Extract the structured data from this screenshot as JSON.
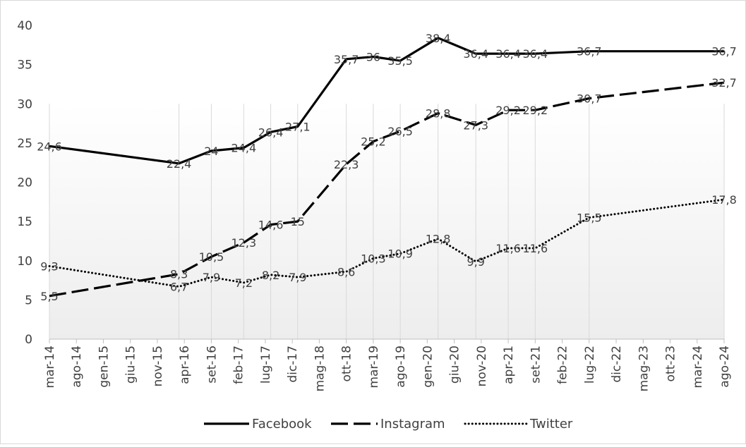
{
  "chart_data": {
    "type": "line",
    "title": "",
    "xlabel": "",
    "ylabel": "",
    "ylim": [
      0,
      40
    ],
    "yticks": [
      0,
      5,
      10,
      15,
      20,
      25,
      30,
      35,
      40
    ],
    "grid": "vertical at data points",
    "legend_position": "bottom",
    "x_axis_labels": [
      "mar-14",
      "ago-14",
      "gen-15",
      "giu-15",
      "nov-15",
      "apr-16",
      "set-16",
      "feb-17",
      "lug-17",
      "dic-17",
      "mag-18",
      "ott-18",
      "mar-19",
      "ago-19",
      "gen-20",
      "giu-20",
      "nov-20",
      "apr-21",
      "set-21",
      "feb-22",
      "lug-22",
      "dic-22",
      "mag-23",
      "ott-23",
      "mar-24",
      "ago-24"
    ],
    "series": [
      {
        "name": "Facebook",
        "dash": "solid",
        "points": [
          {
            "x": "2014-03",
            "y": 24.6,
            "label": "24,6"
          },
          {
            "x": "2016-03",
            "y": 22.4,
            "label": "22,4"
          },
          {
            "x": "2016-09",
            "y": 24,
            "label": "24"
          },
          {
            "x": "2017-03",
            "y": 24.4,
            "label": "24,4"
          },
          {
            "x": "2017-08",
            "y": 26.4,
            "label": "26,4"
          },
          {
            "x": "2018-01",
            "y": 27.1,
            "label": "27,1"
          },
          {
            "x": "2018-10",
            "y": 35.7,
            "label": "35,7"
          },
          {
            "x": "2019-03",
            "y": 36,
            "label": "36"
          },
          {
            "x": "2019-08",
            "y": 35.5,
            "label": "35,5"
          },
          {
            "x": "2020-03",
            "y": 38.4,
            "label": "38,4"
          },
          {
            "x": "2020-10",
            "y": 36.4,
            "label": "36,4"
          },
          {
            "x": "2021-04",
            "y": 36.4,
            "label": "36,4"
          },
          {
            "x": "2021-09",
            "y": 36.4,
            "label": "36,4"
          },
          {
            "x": "2022-07",
            "y": 36.7,
            "label": "36,7"
          },
          {
            "x": "2024-08",
            "y": 36.7,
            "label": "36,7"
          }
        ]
      },
      {
        "name": "Instagram",
        "dash": "long-dash",
        "points": [
          {
            "x": "2014-03",
            "y": 5.5,
            "label": "5,5"
          },
          {
            "x": "2016-03",
            "y": 8.3,
            "label": "8,3"
          },
          {
            "x": "2016-09",
            "y": 10.5,
            "label": "10,5"
          },
          {
            "x": "2017-03",
            "y": 12.3,
            "label": "12,3"
          },
          {
            "x": "2017-08",
            "y": 14.6,
            "label": "14,6"
          },
          {
            "x": "2018-01",
            "y": 15,
            "label": "15"
          },
          {
            "x": "2018-10",
            "y": 22.3,
            "label": "22,3"
          },
          {
            "x": "2019-03",
            "y": 25.2,
            "label": "25,2"
          },
          {
            "x": "2019-08",
            "y": 26.5,
            "label": "26,5"
          },
          {
            "x": "2020-03",
            "y": 28.8,
            "label": "28,8"
          },
          {
            "x": "2020-10",
            "y": 27.3,
            "label": "27,3"
          },
          {
            "x": "2021-04",
            "y": 29.2,
            "label": "29,2"
          },
          {
            "x": "2021-09",
            "y": 29.2,
            "label": "29,2"
          },
          {
            "x": "2022-07",
            "y": 30.7,
            "label": "30,7"
          },
          {
            "x": "2024-08",
            "y": 32.7,
            "label": "32,7"
          }
        ]
      },
      {
        "name": "Twitter",
        "dash": "dotted",
        "points": [
          {
            "x": "2014-03",
            "y": 9.3,
            "label": "9,3"
          },
          {
            "x": "2016-03",
            "y": 6.7,
            "label": "6,7"
          },
          {
            "x": "2016-09",
            "y": 7.9,
            "label": "7,9"
          },
          {
            "x": "2017-03",
            "y": 7.2,
            "label": "7,2"
          },
          {
            "x": "2017-08",
            "y": 8.2,
            "label": "8,2"
          },
          {
            "x": "2018-01",
            "y": 7.9,
            "label": "7,9"
          },
          {
            "x": "2018-10",
            "y": 8.6,
            "label": "8,6"
          },
          {
            "x": "2019-03",
            "y": 10.3,
            "label": "10,3"
          },
          {
            "x": "2019-08",
            "y": 10.9,
            "label": "10,9"
          },
          {
            "x": "2020-03",
            "y": 12.8,
            "label": "12,8"
          },
          {
            "x": "2020-10",
            "y": 9.9,
            "label": "9,9"
          },
          {
            "x": "2021-04",
            "y": 11.6,
            "label": "11,6"
          },
          {
            "x": "2021-09",
            "y": 11.6,
            "label": "11,6"
          },
          {
            "x": "2022-07",
            "y": 15.5,
            "label": "15,5"
          },
          {
            "x": "2024-08",
            "y": 17.8,
            "label": "17,8"
          }
        ]
      }
    ]
  }
}
